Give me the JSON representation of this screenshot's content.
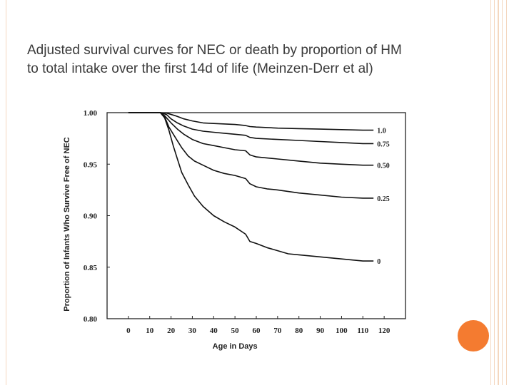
{
  "slide": {
    "title_line1": "Adjusted survival curves for NEC or death by proportion of HM",
    "title_line2": "to total intake over the first 14d of life (Meinzen-Derr et al)",
    "accent_color": "#f47b30",
    "deco_color": "#f4d7bf"
  },
  "chart_data": {
    "type": "line",
    "title": "",
    "xlabel": "Age in Days",
    "ylabel": "Proportion of Infants Who Survive Free of NEC",
    "xlim": [
      -10,
      130
    ],
    "ylim": [
      0.8,
      1.0
    ],
    "xticks": [
      0,
      10,
      20,
      30,
      40,
      50,
      60,
      70,
      80,
      90,
      100,
      110,
      120
    ],
    "yticks": [
      0.8,
      0.85,
      0.9,
      0.95,
      1.0
    ],
    "ytick_labels": [
      "0.80",
      "0.85",
      "0.90",
      "0.95",
      "1.00"
    ],
    "grid": false,
    "series": [
      {
        "name": "1.0",
        "x": [
          0,
          15,
          18,
          22,
          26,
          30,
          35,
          40,
          50,
          55,
          57,
          60,
          70,
          80,
          90,
          100,
          110,
          115
        ],
        "y": [
          1.0,
          1.0,
          0.9995,
          0.997,
          0.994,
          0.992,
          0.99,
          0.9895,
          0.9885,
          0.9875,
          0.9865,
          0.986,
          0.985,
          0.9845,
          0.984,
          0.9835,
          0.983,
          0.983
        ]
      },
      {
        "name": "0.75",
        "x": [
          0,
          15,
          18,
          20,
          23,
          26,
          30,
          35,
          40,
          45,
          50,
          55,
          57,
          60,
          70,
          80,
          90,
          100,
          110,
          115
        ],
        "y": [
          1.0,
          1.0,
          0.998,
          0.994,
          0.99,
          0.987,
          0.984,
          0.982,
          0.981,
          0.98,
          0.979,
          0.978,
          0.976,
          0.975,
          0.974,
          0.973,
          0.972,
          0.971,
          0.97,
          0.97
        ]
      },
      {
        "name": "0.50",
        "x": [
          0,
          15,
          17,
          20,
          23,
          26,
          30,
          35,
          40,
          45,
          50,
          55,
          57,
          60,
          70,
          80,
          90,
          100,
          110,
          115
        ],
        "y": [
          1.0,
          1.0,
          0.997,
          0.99,
          0.984,
          0.979,
          0.974,
          0.97,
          0.968,
          0.966,
          0.964,
          0.963,
          0.959,
          0.957,
          0.955,
          0.953,
          0.951,
          0.95,
          0.949,
          0.949
        ]
      },
      {
        "name": "0.25",
        "x": [
          0,
          15,
          17,
          19,
          22,
          25,
          28,
          31,
          35,
          40,
          45,
          50,
          55,
          57,
          60,
          65,
          70,
          80,
          90,
          100,
          110,
          115
        ],
        "y": [
          1.0,
          1.0,
          0.996,
          0.986,
          0.976,
          0.966,
          0.958,
          0.953,
          0.949,
          0.944,
          0.941,
          0.939,
          0.936,
          0.931,
          0.928,
          0.926,
          0.925,
          0.922,
          0.92,
          0.918,
          0.917,
          0.917
        ]
      },
      {
        "name": "0",
        "x": [
          0,
          15,
          17,
          19,
          21,
          23,
          25,
          28,
          31,
          35,
          40,
          45,
          50,
          55,
          57,
          60,
          65,
          70,
          75,
          80,
          90,
          100,
          110,
          115
        ],
        "y": [
          1.0,
          1.0,
          0.995,
          0.983,
          0.968,
          0.955,
          0.942,
          0.93,
          0.919,
          0.909,
          0.9,
          0.894,
          0.889,
          0.882,
          0.875,
          0.873,
          0.869,
          0.866,
          0.863,
          0.862,
          0.86,
          0.858,
          0.856,
          0.856
        ]
      }
    ]
  }
}
